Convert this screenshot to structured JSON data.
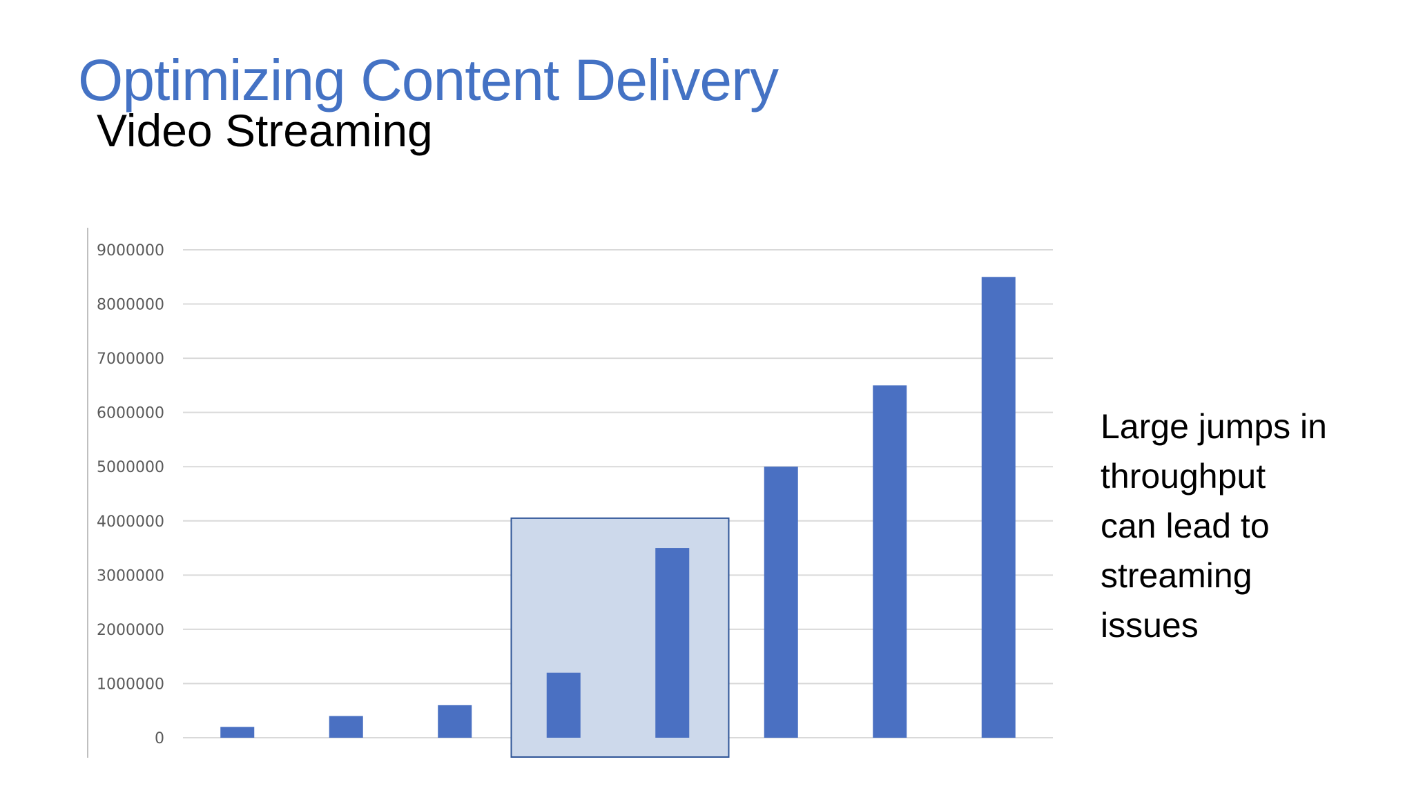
{
  "slide": {
    "title": "Optimizing Content Delivery",
    "subtitle": "Video Streaming",
    "note_lines": [
      "Large jumps in",
      "throughput",
      "can lead to",
      "streaming",
      "issues"
    ]
  },
  "colors": {
    "title": "#4472c4",
    "bar": "#4a70c2",
    "highlight_fill": "#cdd9eb",
    "highlight_stroke": "#2f5597",
    "grid": "#d9d9d9"
  },
  "chart_data": {
    "type": "bar",
    "categories": [
      "",
      "",
      "",
      "",
      "",
      "",
      "",
      ""
    ],
    "values": [
      200000,
      400000,
      600000,
      1200000,
      3500000,
      5000000,
      6500000,
      8500000
    ],
    "title": "",
    "xlabel": "",
    "ylabel": "",
    "ylim": [
      0,
      9000000
    ],
    "yticks": [
      0,
      1000000,
      2000000,
      3000000,
      4000000,
      5000000,
      6000000,
      7000000,
      8000000,
      9000000
    ],
    "grid": true,
    "legend": "none",
    "highlight": {
      "from_index": 3,
      "to_index": 4,
      "upper_value": 4050000
    }
  }
}
